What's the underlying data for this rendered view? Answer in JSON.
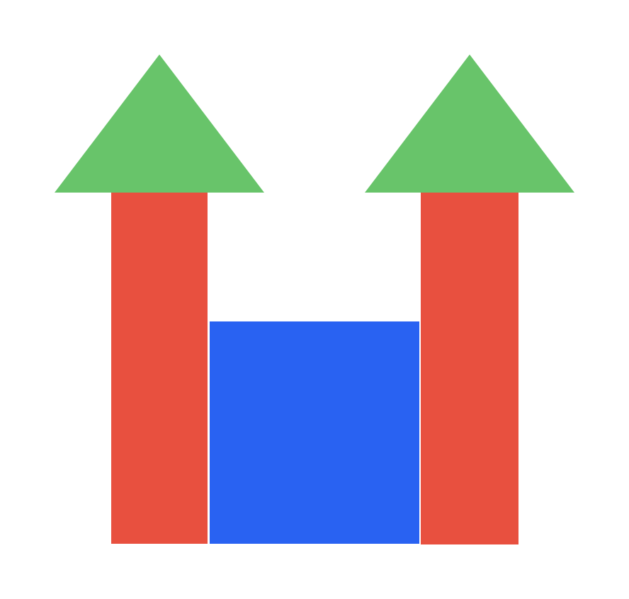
{
  "colors": {
    "background": "#ffffff",
    "tower": "#e8503f",
    "roof": "#68c46a",
    "gate": "#2962f2",
    "separator": "#ffffff"
  },
  "shapes": {
    "left_tower": {
      "shape": "rectangle",
      "color_key": "tower"
    },
    "left_roof": {
      "shape": "triangle",
      "color_key": "roof"
    },
    "right_tower": {
      "shape": "rectangle",
      "color_key": "tower"
    },
    "right_roof": {
      "shape": "triangle",
      "color_key": "roof"
    },
    "center_block": {
      "shape": "square",
      "color_key": "gate"
    }
  }
}
